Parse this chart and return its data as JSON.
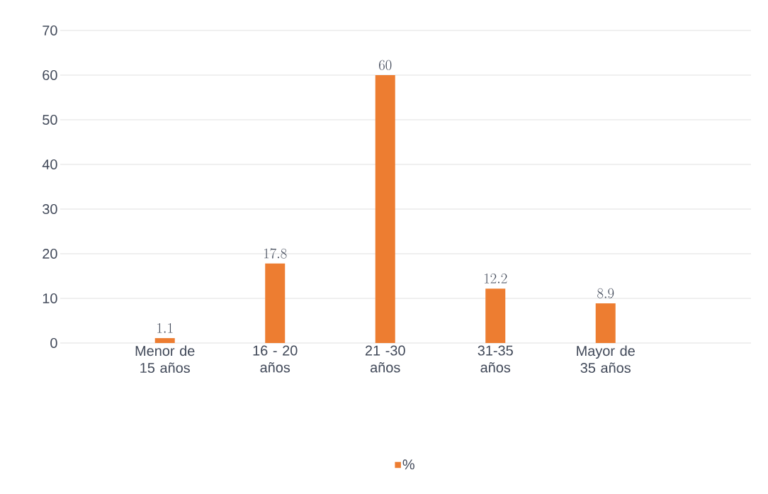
{
  "chart_data": {
    "type": "bar",
    "categories": [
      "Menor de 15 años",
      "16 - 20 años",
      "21 -30 años",
      "31-35 años",
      "Mayor de 35 años"
    ],
    "series": [
      {
        "name": "%",
        "color": "#ed7d31",
        "values": [
          1.1,
          17.8,
          60,
          12.2,
          8.9
        ]
      }
    ],
    "ylim": [
      0,
      70
    ],
    "yticks": [
      0,
      10,
      20,
      30,
      40,
      50,
      60,
      70
    ],
    "grid": "y",
    "legend": "bottom",
    "data_labels": true
  }
}
